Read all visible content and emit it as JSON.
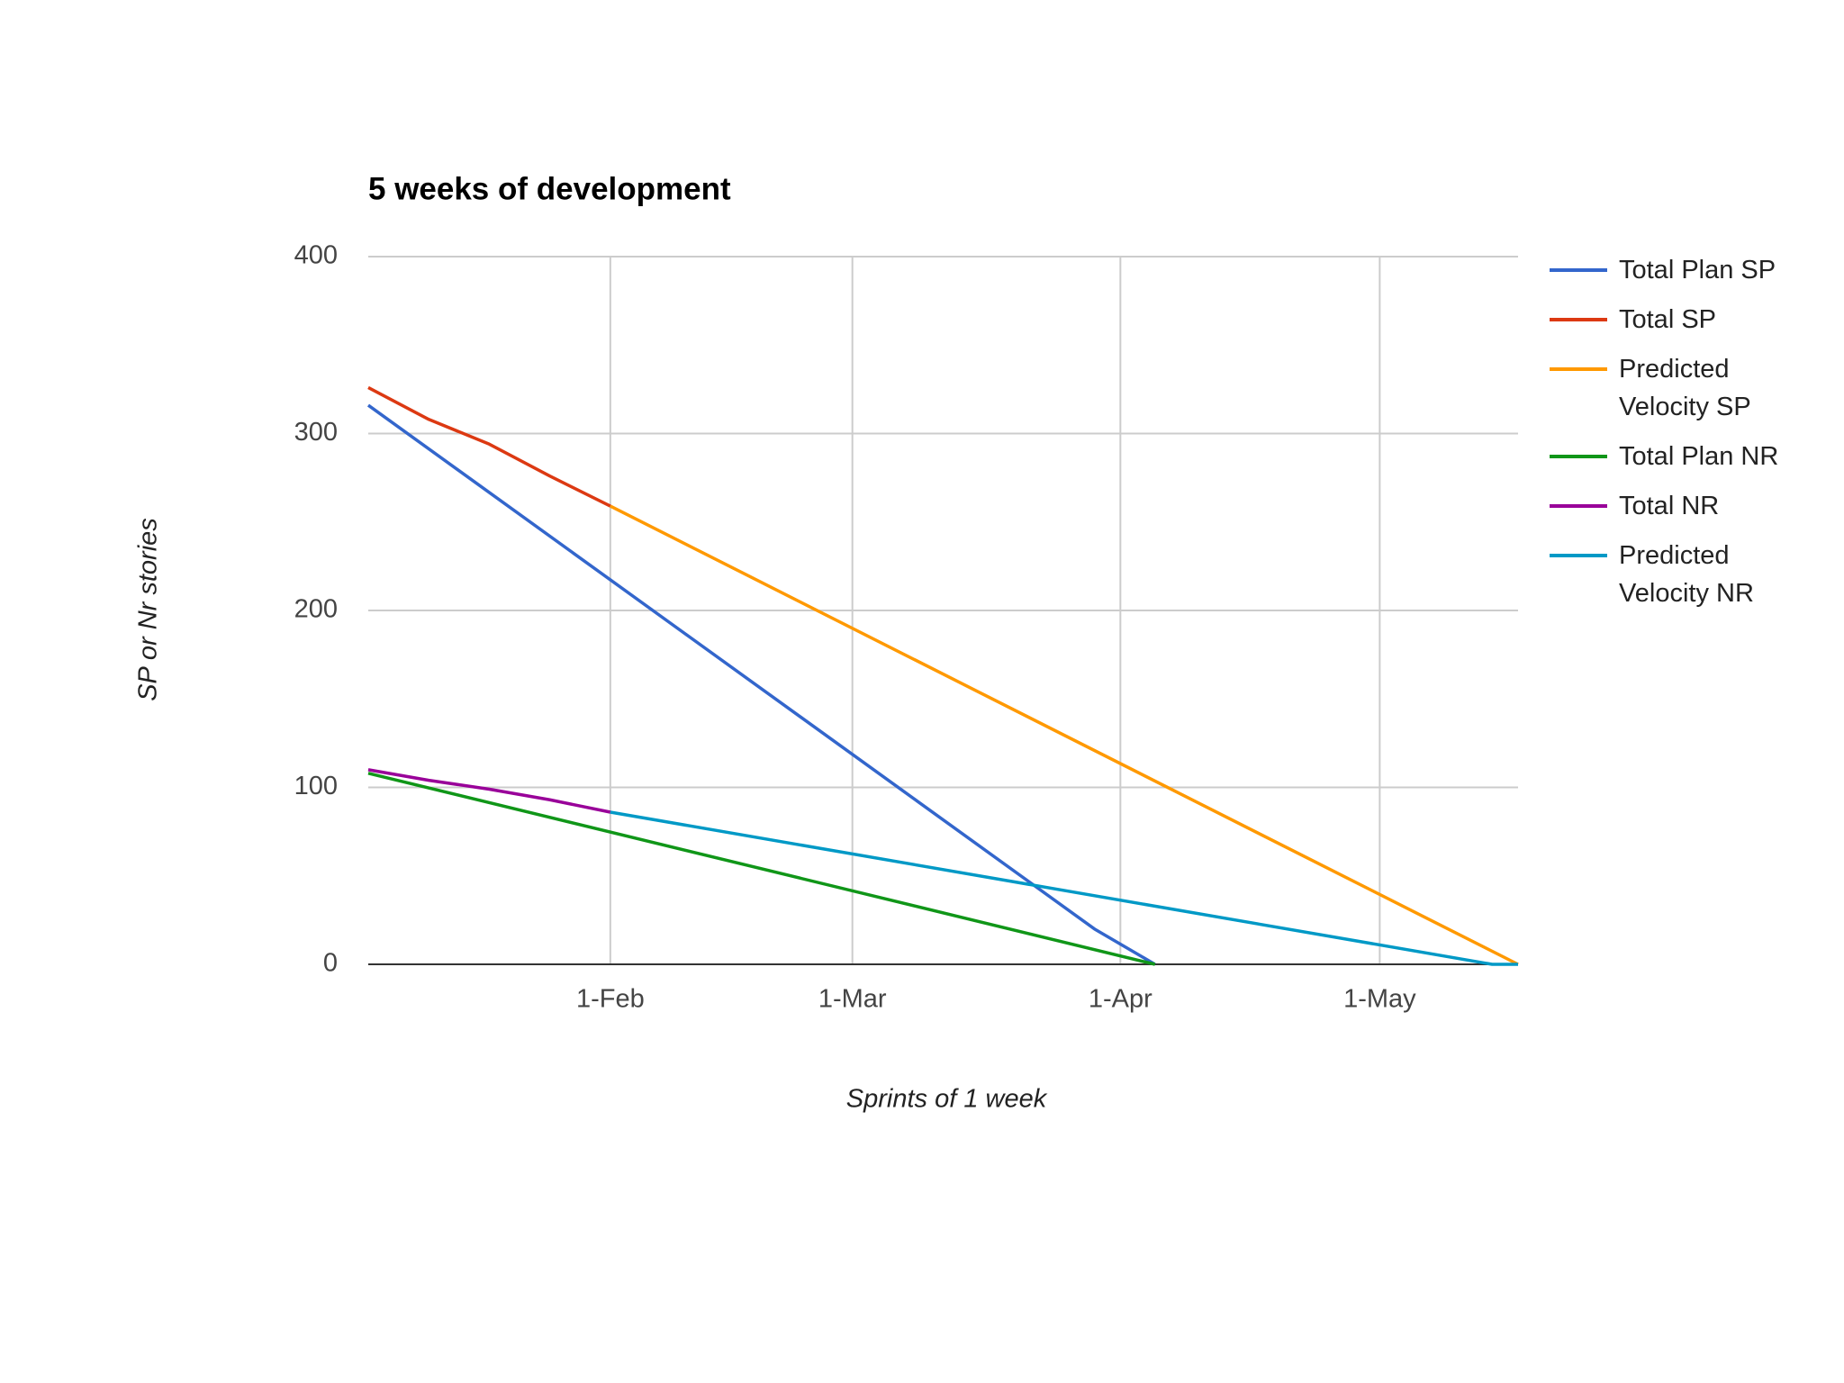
{
  "chart_data": {
    "type": "line",
    "title": "5 weeks of development",
    "x_label": "Sprints of 1 week",
    "y_label": "SP or Nr stories",
    "xlim": [
      4,
      137
    ],
    "xticks": [
      {
        "value": 32,
        "label": "1-Feb"
      },
      {
        "value": 60,
        "label": "1-Mar"
      },
      {
        "value": 91,
        "label": "1-Apr"
      },
      {
        "value": 121,
        "label": "1-May"
      }
    ],
    "ylim": [
      0,
      400
    ],
    "yticks": [
      0,
      100,
      200,
      300,
      400
    ],
    "grid": true,
    "legend": "right",
    "series": [
      {
        "name": "Total Plan SP",
        "color": "#3366cc",
        "x": [
          4,
          88,
          95
        ],
        "values": [
          316,
          20,
          0
        ]
      },
      {
        "name": "Total SP",
        "color": "#dc3912",
        "x": [
          4,
          11,
          18,
          25,
          32
        ],
        "values": [
          326,
          308,
          294,
          276,
          259
        ]
      },
      {
        "name": "Predicted Velocity SP",
        "color": "#ff9900",
        "x": [
          32,
          137
        ],
        "values": [
          259,
          0
        ]
      },
      {
        "name": "Total Plan NR",
        "color": "#109618",
        "x": [
          4,
          95
        ],
        "values": [
          108,
          0
        ]
      },
      {
        "name": "Total NR",
        "color": "#990099",
        "x": [
          4,
          11,
          18,
          25,
          32
        ],
        "values": [
          110,
          104,
          99,
          93,
          86
        ]
      },
      {
        "name": "Predicted Velocity NR",
        "color": "#0099c6",
        "x": [
          32,
          134,
          137
        ],
        "values": [
          86,
          0,
          0
        ]
      }
    ]
  }
}
